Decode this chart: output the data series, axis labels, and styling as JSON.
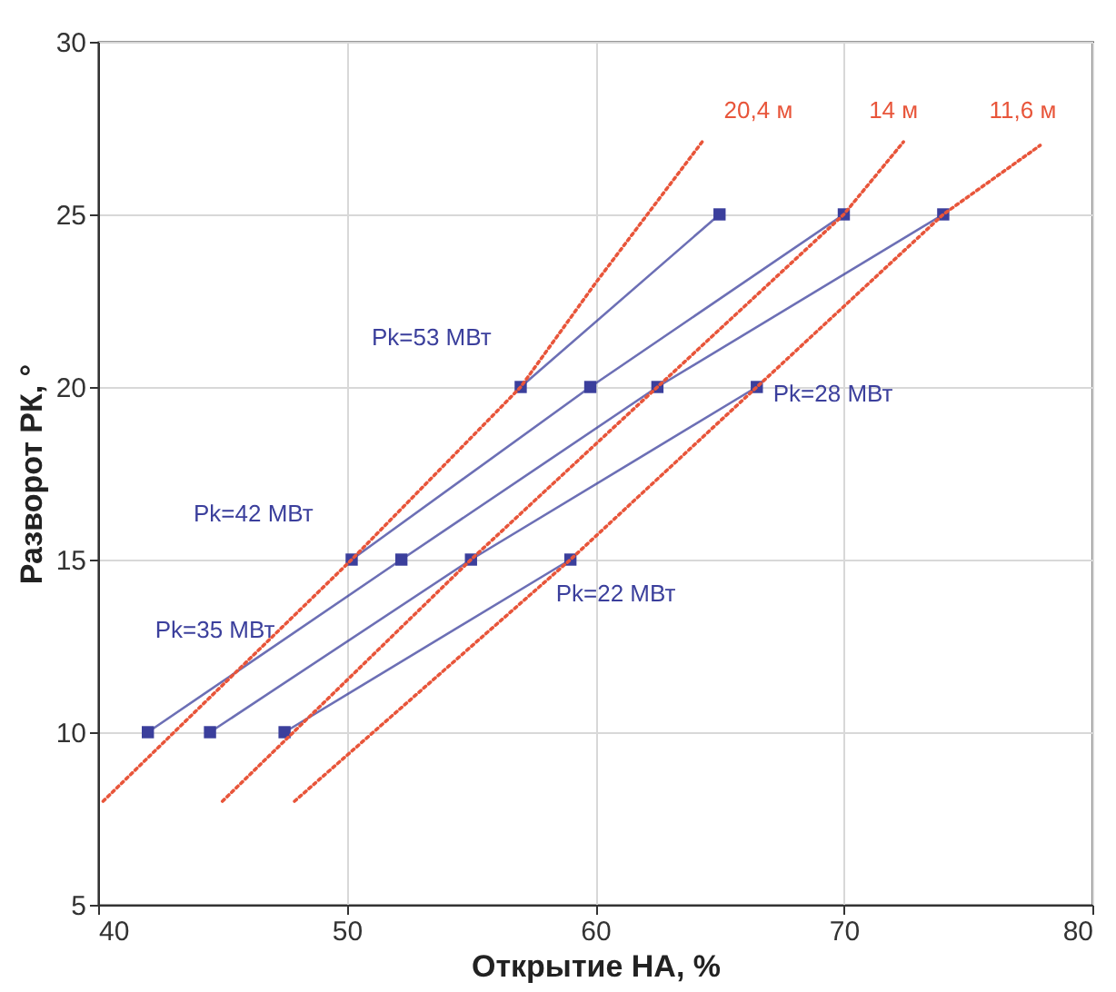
{
  "chart_data": {
    "type": "line",
    "xlabel": "Открытие НА, %",
    "ylabel": "Разворот РК, °",
    "xlim": [
      40,
      80
    ],
    "xticks": [
      40,
      50,
      60,
      70,
      80
    ],
    "ylim": [
      5,
      30
    ],
    "yticks": [
      5,
      10,
      15,
      20,
      25,
      30
    ],
    "grid": true,
    "legend": false,
    "series": [
      {
        "name": "Pk=53 МВт",
        "color": "#3b3f9c",
        "marker": "square",
        "line_style": "solid",
        "x": [
          57,
          65
        ],
        "values": [
          20,
          25
        ]
      },
      {
        "name": "Pk=42 МВт",
        "color": "#3b3f9c",
        "marker": "square",
        "line_style": "solid",
        "x": [
          50.2,
          59.8,
          70
        ],
        "values": [
          15,
          20,
          25
        ]
      },
      {
        "name": "Pk=35 МВт",
        "color": "#3b3f9c",
        "marker": "square",
        "line_style": "solid",
        "x": [
          42,
          52.2,
          62.5,
          74
        ],
        "values": [
          10,
          15,
          20,
          25
        ]
      },
      {
        "name": "Pk=28 МВт",
        "color": "#3b3f9c",
        "marker": "square",
        "line_style": "solid",
        "x": [
          44.5,
          55,
          66.5
        ],
        "values": [
          10,
          15,
          20
        ]
      },
      {
        "name": "Pk=22 МВт",
        "color": "#3b3f9c",
        "marker": "square",
        "line_style": "solid",
        "x": [
          47.5,
          59
        ],
        "values": [
          10,
          15
        ]
      },
      {
        "name": "20,4 м",
        "color": "#e8553a",
        "marker": "none",
        "line_style": "dotted",
        "x": [
          40.2,
          50.2,
          57,
          60,
          64.3
        ],
        "values": [
          8,
          15,
          20,
          23,
          27.1
        ]
      },
      {
        "name": "14 м",
        "color": "#e8553a",
        "marker": "none",
        "line_style": "dotted",
        "x": [
          45,
          55,
          62.5,
          70,
          72.4
        ],
        "values": [
          8,
          15,
          20,
          25,
          27.1
        ]
      },
      {
        "name": "11,6 м",
        "color": "#e8553a",
        "marker": "none",
        "line_style": "dotted",
        "x": [
          47.9,
          59,
          66.5,
          74,
          77.9
        ],
        "values": [
          8,
          15,
          20,
          25,
          27
        ]
      }
    ]
  }
}
